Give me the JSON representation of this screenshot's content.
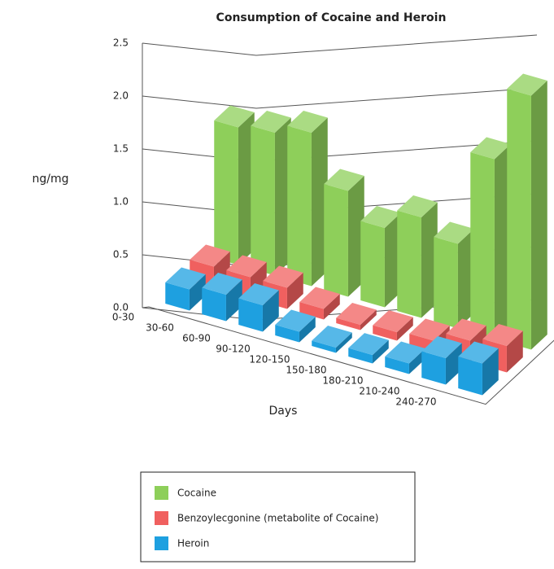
{
  "chart_data": {
    "type": "bar3d",
    "title": "Consumption of Cocaine and Heroin",
    "y_label": "ng/mg",
    "x_label": "Days",
    "categories": [
      "0-30",
      "30-60",
      "60-90",
      "90-120",
      "120-150",
      "150-180",
      "180-210",
      "210-240",
      "240-270"
    ],
    "series": [
      {
        "name": "Cocaine",
        "color": "#8ecf5a",
        "values": [
          1.3,
          1.35,
          1.45,
          1.0,
          0.75,
          0.95,
          0.8,
          1.7,
          2.4
        ]
      },
      {
        "name": "Benzoylecgonine (metabolite of Cocaine)",
        "color": "#f0605f",
        "values": [
          0.2,
          0.2,
          0.2,
          0.1,
          0.05,
          0.08,
          0.1,
          0.2,
          0.25
        ]
      },
      {
        "name": "Heroin",
        "color": "#1ea0e0",
        "values": [
          0.2,
          0.25,
          0.25,
          0.1,
          0.05,
          0.08,
          0.1,
          0.25,
          0.3
        ]
      }
    ],
    "ylim": [
      0,
      2.5
    ],
    "yticks": [
      {
        "value": 0,
        "label": "0.0"
      },
      0.5,
      {
        "value": 1,
        "label": "1.0"
      },
      1.5,
      {
        "value": 2,
        "label": "2.0"
      },
      2.5
    ],
    "grid": true,
    "legend": "bottom"
  }
}
